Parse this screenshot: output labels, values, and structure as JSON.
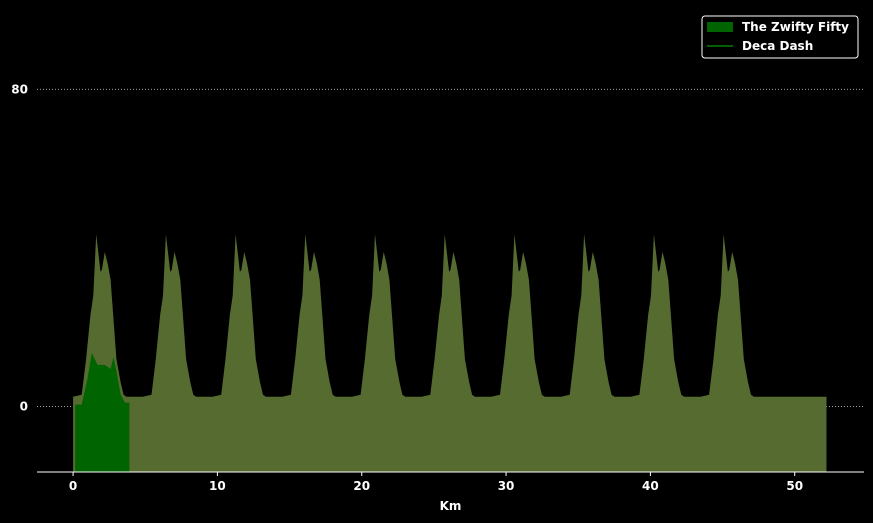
{
  "chart_data": {
    "type": "area",
    "xlabel": "Km",
    "ylabel": "",
    "xlim": [
      -2.5,
      54.8
    ],
    "ylim": [
      -16.5,
      100
    ],
    "x_ticks": [
      "0",
      "10",
      "20",
      "30",
      "40",
      "50"
    ],
    "y_ticks": [
      "0",
      "80"
    ],
    "grid": "horizontal dotted",
    "legend_position": "top-right",
    "series": [
      {
        "name": "The Zwifty Fifty",
        "kind": "filled-area",
        "color": "#006400",
        "x": [
          0.15,
          0.6,
          1.0,
          1.3,
          1.7,
          2.2,
          2.6,
          2.8,
          3.0,
          3.3,
          3.6,
          3.9
        ],
        "y": [
          0.5,
          0.5,
          7.0,
          13.5,
          10.5,
          10.5,
          9.5,
          12.5,
          9.0,
          3.0,
          1.0,
          1.0
        ]
      },
      {
        "name": "Deca Dash",
        "kind": "line-with-fill",
        "color": "#008000",
        "fill_color": "#556b2f",
        "lap_length_km": 4.83,
        "laps": 10,
        "lap_profile_x": [
          0.0,
          0.6,
          0.9,
          1.2,
          1.4,
          1.6,
          1.9,
          2.0,
          2.2,
          2.4,
          2.6,
          2.8,
          3.0,
          3.3,
          3.5,
          3.7,
          4.0,
          4.83
        ],
        "lap_profile_y": [
          2.5,
          3.0,
          12.0,
          23.0,
          28.0,
          43.5,
          34.0,
          34.5,
          39.0,
          36.0,
          32.0,
          22.0,
          12.0,
          6.0,
          3.0,
          2.5,
          2.5,
          2.5
        ],
        "end_km": 52.2
      }
    ]
  }
}
